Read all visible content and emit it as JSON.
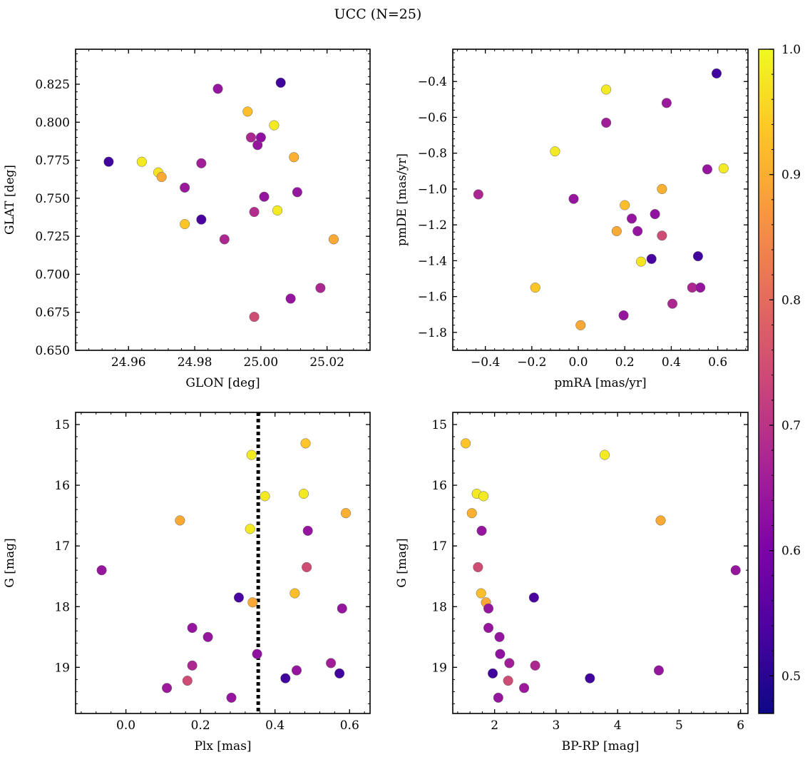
{
  "figure": {
    "suptitle": "UCC (N=25)"
  },
  "colorbar": {
    "colormap": "plasma",
    "range": [
      0.47,
      1.0
    ],
    "ticks": [
      0.5,
      0.6,
      0.7,
      0.8,
      0.9,
      1.0
    ],
    "tick_labels": [
      "0.5",
      "0.6",
      "0.7",
      "0.8",
      "0.9",
      "1.0"
    ]
  },
  "chart_data": [
    {
      "type": "scatter",
      "title": "",
      "xlabel": "GLON [deg]",
      "ylabel": "GLAT [deg]",
      "xlim": [
        24.944,
        25.033
      ],
      "ylim": [
        0.65,
        0.848
      ],
      "xticks": [
        24.96,
        24.98,
        25.0,
        25.02
      ],
      "xtick_labels": [
        "24.96",
        "24.98",
        "25.00",
        "25.02"
      ],
      "yticks": [
        0.65,
        0.675,
        0.7,
        0.725,
        0.75,
        0.775,
        0.8,
        0.825
      ],
      "ytick_labels": [
        "0.650",
        "0.675",
        "0.700",
        "0.725",
        "0.750",
        "0.775",
        "0.800",
        "0.825"
      ],
      "invert_y": false,
      "points": [
        {
          "x": 24.954,
          "y": 0.774,
          "c": 0.5
        },
        {
          "x": 24.964,
          "y": 0.774,
          "c": 0.98
        },
        {
          "x": 24.969,
          "y": 0.767,
          "c": 0.97
        },
        {
          "x": 24.97,
          "y": 0.764,
          "c": 0.89
        },
        {
          "x": 24.977,
          "y": 0.757,
          "c": 0.63
        },
        {
          "x": 24.977,
          "y": 0.733,
          "c": 0.93
        },
        {
          "x": 24.982,
          "y": 0.773,
          "c": 0.64
        },
        {
          "x": 24.982,
          "y": 0.736,
          "c": 0.51
        },
        {
          "x": 24.987,
          "y": 0.822,
          "c": 0.62
        },
        {
          "x": 24.989,
          "y": 0.723,
          "c": 0.66
        },
        {
          "x": 24.996,
          "y": 0.807,
          "c": 0.92
        },
        {
          "x": 24.997,
          "y": 0.79,
          "c": 0.66
        },
        {
          "x": 24.998,
          "y": 0.741,
          "c": 0.67
        },
        {
          "x": 24.998,
          "y": 0.672,
          "c": 0.73
        },
        {
          "x": 24.999,
          "y": 0.785,
          "c": 0.62
        },
        {
          "x": 25.0,
          "y": 0.79,
          "c": 0.61
        },
        {
          "x": 25.001,
          "y": 0.751,
          "c": 0.62
        },
        {
          "x": 25.004,
          "y": 0.798,
          "c": 0.98
        },
        {
          "x": 25.005,
          "y": 0.742,
          "c": 0.98
        },
        {
          "x": 25.006,
          "y": 0.826,
          "c": 0.5
        },
        {
          "x": 25.009,
          "y": 0.684,
          "c": 0.62
        },
        {
          "x": 25.01,
          "y": 0.777,
          "c": 0.9
        },
        {
          "x": 25.011,
          "y": 0.754,
          "c": 0.62
        },
        {
          "x": 25.018,
          "y": 0.691,
          "c": 0.66
        },
        {
          "x": 25.022,
          "y": 0.723,
          "c": 0.89
        }
      ]
    },
    {
      "type": "scatter",
      "title": "",
      "xlabel": "pmRA [mas/yr]",
      "ylabel": "pmDE [mas/yr]",
      "xlim": [
        -0.54,
        0.73
      ],
      "ylim": [
        -1.9,
        -0.22
      ],
      "xticks": [
        -0.4,
        -0.2,
        0.0,
        0.2,
        0.4,
        0.6
      ],
      "xtick_labels": [
        "−0.4",
        "−0.2",
        "0.0",
        "0.2",
        "0.4",
        "0.6"
      ],
      "yticks": [
        -1.8,
        -1.6,
        -1.4,
        -1.2,
        -1.0,
        -0.8,
        -0.6,
        -0.4
      ],
      "ytick_labels": [
        "−1.8",
        "−1.6",
        "−1.4",
        "−1.2",
        "−1.0",
        "−0.8",
        "−0.6",
        "−0.4"
      ],
      "invert_y": false,
      "points": [
        {
          "x": 0.595,
          "y": -0.355,
          "c": 0.5
        },
        {
          "x": 0.12,
          "y": -0.445,
          "c": 0.98
        },
        {
          "x": 0.38,
          "y": -0.52,
          "c": 0.63
        },
        {
          "x": 0.12,
          "y": -0.63,
          "c": 0.64
        },
        {
          "x": -0.1,
          "y": -0.79,
          "c": 0.98
        },
        {
          "x": 0.555,
          "y": -0.89,
          "c": 0.62
        },
        {
          "x": 0.625,
          "y": -0.885,
          "c": 0.98
        },
        {
          "x": 0.36,
          "y": -1.0,
          "c": 0.9
        },
        {
          "x": -0.43,
          "y": -1.03,
          "c": 0.66
        },
        {
          "x": -0.02,
          "y": -1.055,
          "c": 0.62
        },
        {
          "x": 0.2,
          "y": -1.09,
          "c": 0.92
        },
        {
          "x": 0.33,
          "y": -1.14,
          "c": 0.61
        },
        {
          "x": 0.23,
          "y": -1.165,
          "c": 0.62
        },
        {
          "x": 0.165,
          "y": -1.235,
          "c": 0.89
        },
        {
          "x": 0.255,
          "y": -1.235,
          "c": 0.62
        },
        {
          "x": 0.36,
          "y": -1.26,
          "c": 0.73
        },
        {
          "x": 0.315,
          "y": -1.39,
          "c": 0.51
        },
        {
          "x": 0.27,
          "y": -1.405,
          "c": 0.97
        },
        {
          "x": 0.515,
          "y": -1.375,
          "c": 0.5
        },
        {
          "x": -0.185,
          "y": -1.55,
          "c": 0.93
        },
        {
          "x": 0.49,
          "y": -1.55,
          "c": 0.66
        },
        {
          "x": 0.525,
          "y": -1.55,
          "c": 0.62
        },
        {
          "x": 0.405,
          "y": -1.64,
          "c": 0.66
        },
        {
          "x": 0.195,
          "y": -1.705,
          "c": 0.62
        },
        {
          "x": 0.01,
          "y": -1.76,
          "c": 0.89
        }
      ]
    },
    {
      "type": "scatter",
      "title": "",
      "xlabel": "Plx [mas]",
      "ylabel": "G [mag]",
      "xlim": [
        -0.135,
        0.655
      ],
      "ylim": [
        19.76,
        14.8
      ],
      "xticks": [
        0.0,
        0.2,
        0.4,
        0.6
      ],
      "xtick_labels": [
        "0.0",
        "0.2",
        "0.4",
        "0.6"
      ],
      "yticks": [
        15,
        16,
        17,
        18,
        19
      ],
      "ytick_labels": [
        "15",
        "16",
        "17",
        "18",
        "19"
      ],
      "invert_y": true,
      "vline": {
        "x": 0.355,
        "style": "dotted"
      },
      "points": [
        {
          "x": 0.337,
          "y": 15.5,
          "c": 0.98
        },
        {
          "x": 0.482,
          "y": 15.31,
          "c": 0.93
        },
        {
          "x": 0.373,
          "y": 16.18,
          "c": 0.98
        },
        {
          "x": 0.477,
          "y": 16.14,
          "c": 0.98
        },
        {
          "x": 0.59,
          "y": 16.46,
          "c": 0.9
        },
        {
          "x": 0.145,
          "y": 16.58,
          "c": 0.89
        },
        {
          "x": 0.333,
          "y": 16.72,
          "c": 0.98
        },
        {
          "x": 0.488,
          "y": 16.75,
          "c": 0.62
        },
        {
          "x": -0.065,
          "y": 17.4,
          "c": 0.62
        },
        {
          "x": 0.485,
          "y": 17.35,
          "c": 0.73
        },
        {
          "x": 0.453,
          "y": 17.78,
          "c": 0.92
        },
        {
          "x": 0.303,
          "y": 17.85,
          "c": 0.51
        },
        {
          "x": 0.34,
          "y": 17.93,
          "c": 0.89
        },
        {
          "x": 0.58,
          "y": 18.03,
          "c": 0.62
        },
        {
          "x": 0.178,
          "y": 18.35,
          "c": 0.62
        },
        {
          "x": 0.22,
          "y": 18.5,
          "c": 0.62
        },
        {
          "x": 0.352,
          "y": 18.78,
          "c": 0.61
        },
        {
          "x": 0.55,
          "y": 18.93,
          "c": 0.64
        },
        {
          "x": 0.178,
          "y": 18.97,
          "c": 0.66
        },
        {
          "x": 0.458,
          "y": 19.05,
          "c": 0.62
        },
        {
          "x": 0.573,
          "y": 19.1,
          "c": 0.5
        },
        {
          "x": 0.428,
          "y": 19.18,
          "c": 0.5
        },
        {
          "x": 0.165,
          "y": 19.22,
          "c": 0.73
        },
        {
          "x": 0.11,
          "y": 19.34,
          "c": 0.63
        },
        {
          "x": 0.283,
          "y": 19.5,
          "c": 0.62
        }
      ]
    },
    {
      "type": "scatter",
      "title": "",
      "xlabel": "BP-RP [mag]",
      "ylabel": "G [mag]",
      "xlim": [
        1.32,
        6.12
      ],
      "ylim": [
        19.76,
        14.8
      ],
      "xticks": [
        2,
        3,
        4,
        5,
        6
      ],
      "xtick_labels": [
        "2",
        "3",
        "4",
        "5",
        "6"
      ],
      "yticks": [
        15,
        16,
        17,
        18,
        19
      ],
      "ytick_labels": [
        "15",
        "16",
        "17",
        "18",
        "19"
      ],
      "invert_y": true,
      "points": [
        {
          "x": 1.53,
          "y": 15.31,
          "c": 0.93
        },
        {
          "x": 3.79,
          "y": 15.5,
          "c": 0.98
        },
        {
          "x": 1.71,
          "y": 16.14,
          "c": 0.98
        },
        {
          "x": 1.82,
          "y": 16.18,
          "c": 0.98
        },
        {
          "x": 1.63,
          "y": 16.46,
          "c": 0.9
        },
        {
          "x": 4.7,
          "y": 16.58,
          "c": 0.89
        },
        {
          "x": 1.79,
          "y": 16.75,
          "c": 0.62
        },
        {
          "x": 1.73,
          "y": 17.35,
          "c": 0.73
        },
        {
          "x": 5.92,
          "y": 17.4,
          "c": 0.62
        },
        {
          "x": 1.78,
          "y": 17.78,
          "c": 0.92
        },
        {
          "x": 2.64,
          "y": 17.85,
          "c": 0.51
        },
        {
          "x": 1.86,
          "y": 17.93,
          "c": 0.89
        },
        {
          "x": 1.9,
          "y": 18.03,
          "c": 0.62
        },
        {
          "x": 1.9,
          "y": 18.35,
          "c": 0.62
        },
        {
          "x": 2.08,
          "y": 18.5,
          "c": 0.62
        },
        {
          "x": 2.09,
          "y": 18.78,
          "c": 0.61
        },
        {
          "x": 2.24,
          "y": 18.93,
          "c": 0.64
        },
        {
          "x": 2.66,
          "y": 18.97,
          "c": 0.66
        },
        {
          "x": 4.67,
          "y": 19.05,
          "c": 0.62
        },
        {
          "x": 1.97,
          "y": 19.1,
          "c": 0.5
        },
        {
          "x": 3.55,
          "y": 19.18,
          "c": 0.5
        },
        {
          "x": 2.22,
          "y": 19.22,
          "c": 0.73
        },
        {
          "x": 2.48,
          "y": 19.34,
          "c": 0.63
        },
        {
          "x": 2.06,
          "y": 19.5,
          "c": 0.62
        }
      ]
    }
  ]
}
